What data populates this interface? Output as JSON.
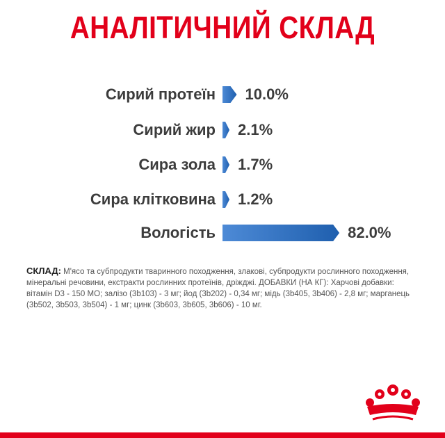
{
  "title": "АНАЛІТИЧНИЙ СКЛАД",
  "colors": {
    "accent_red": "#e2001a",
    "bar_blue_start": "#1f5fae",
    "bar_blue_end": "#4d8ad6",
    "text_dark": "#3c3c3c"
  },
  "nutrients": [
    {
      "label": "Сирий протеїн",
      "value": "10.0%",
      "percent": 10.0
    },
    {
      "label": "Сирий жир",
      "value": "2.1%",
      "percent": 2.1
    },
    {
      "label": "Сира зола",
      "value": "1.7%",
      "percent": 1.7
    },
    {
      "label": "Сира клітковина",
      "value": "1.2%",
      "percent": 1.2
    },
    {
      "label": "Вологість",
      "value": "82.0%",
      "percent": 82.0
    }
  ],
  "composition": {
    "label": "СКЛАД:",
    "text": "М'ясо та субпродукти тваринного походження, злакові, субпродукти рослинного походження, мінеральні речовини, екстракти рослинних протеїнів, дріжджі. ДОБАВКИ (НА КГ): Харчові добавки: вітамін D3 - 150 МО; залізо (3b103) - 3 мг; йод (3b202) - 0,34 мг; мідь (3b405, 3b406) - 2,8 мг; марганець (3b502, 3b503, 3b504) - 1 мг; цинк (3b603, 3b605, 3b606) - 10 мг."
  },
  "logo": {
    "icon": "royal-crown-icon"
  }
}
